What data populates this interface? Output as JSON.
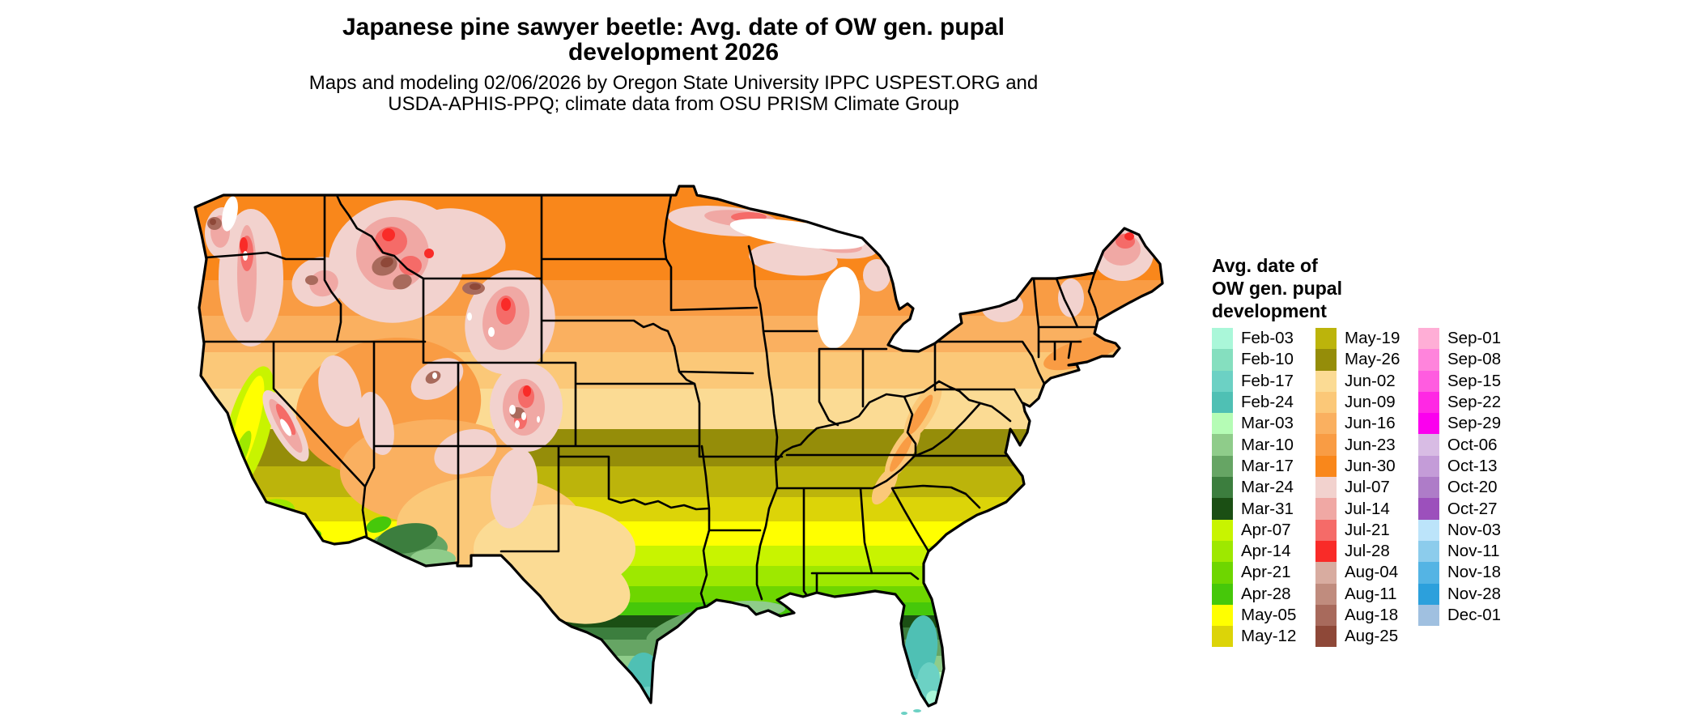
{
  "title": {
    "line1": "Japanese pine sawyer beetle: Avg. date of OW gen. pupal",
    "line2": "development 2026"
  },
  "subtitle": {
    "line1": "Maps and modeling 02/06/2026 by Oregon State University IPPC USPEST.ORG and",
    "line2": "USDA-APHIS-PPQ; climate data from OSU PRISM Climate Group"
  },
  "legend": {
    "title_lines": [
      "Avg. date of",
      "OW gen. pupal",
      "development"
    ],
    "columns": [
      {
        "entries": [
          {
            "label": "Feb-03",
            "color": "#AAF7D9"
          },
          {
            "label": "Feb-10",
            "color": "#85DFBF"
          },
          {
            "label": "Feb-17",
            "color": "#6CD1C4"
          },
          {
            "label": "Feb-24",
            "color": "#4FC0B4"
          },
          {
            "label": "Mar-03",
            "color": "#B5FCB5"
          },
          {
            "label": "Mar-10",
            "color": "#8FCC8A"
          },
          {
            "label": "Mar-17",
            "color": "#66A564"
          },
          {
            "label": "Mar-24",
            "color": "#3C7E3E"
          },
          {
            "label": "Mar-31",
            "color": "#1B4F14"
          },
          {
            "label": "Apr-07",
            "color": "#C8F400"
          },
          {
            "label": "Apr-14",
            "color": "#9EE800"
          },
          {
            "label": "Apr-21",
            "color": "#6ED600"
          },
          {
            "label": "Apr-28",
            "color": "#46C80A"
          },
          {
            "label": "May-05",
            "color": "#FFFF00"
          },
          {
            "label": "May-12",
            "color": "#DCD408"
          }
        ]
      },
      {
        "entries": [
          {
            "label": "May-19",
            "color": "#BCB40B"
          },
          {
            "label": "May-26",
            "color": "#958D09"
          },
          {
            "label": "Jun-02",
            "color": "#FBDB94"
          },
          {
            "label": "Jun-09",
            "color": "#FBC878"
          },
          {
            "label": "Jun-16",
            "color": "#FAB060"
          },
          {
            "label": "Jun-23",
            "color": "#F99C44"
          },
          {
            "label": "Jun-30",
            "color": "#F9871B"
          },
          {
            "label": "Jul-07",
            "color": "#F2D2CE"
          },
          {
            "label": "Jul-14",
            "color": "#F0A8A4"
          },
          {
            "label": "Jul-21",
            "color": "#F56B68"
          },
          {
            "label": "Jul-28",
            "color": "#F92B28"
          },
          {
            "label": "Aug-04",
            "color": "#D8ACA0"
          },
          {
            "label": "Aug-11",
            "color": "#C08C7E"
          },
          {
            "label": "Aug-18",
            "color": "#A86A5C"
          },
          {
            "label": "Aug-25",
            "color": "#8E4838"
          }
        ]
      },
      {
        "entries": [
          {
            "label": "Sep-01",
            "color": "#FFAED6"
          },
          {
            "label": "Sep-08",
            "color": "#FF84DC"
          },
          {
            "label": "Sep-15",
            "color": "#FF5CE0"
          },
          {
            "label": "Sep-22",
            "color": "#FF28E4"
          },
          {
            "label": "Sep-29",
            "color": "#FB00EE"
          },
          {
            "label": "Oct-06",
            "color": "#D8BCE4"
          },
          {
            "label": "Oct-13",
            "color": "#C49CD8"
          },
          {
            "label": "Oct-20",
            "color": "#AE7CC8"
          },
          {
            "label": "Oct-27",
            "color": "#9C50BC"
          },
          {
            "label": "Nov-03",
            "color": "#BCE4FA"
          },
          {
            "label": "Nov-11",
            "color": "#8CCCEC"
          },
          {
            "label": "Nov-18",
            "color": "#54B4E4"
          },
          {
            "label": "Nov-28",
            "color": "#2CA0DC"
          },
          {
            "label": "Dec-01",
            "color": "#A0C0E0"
          }
        ]
      }
    ]
  }
}
